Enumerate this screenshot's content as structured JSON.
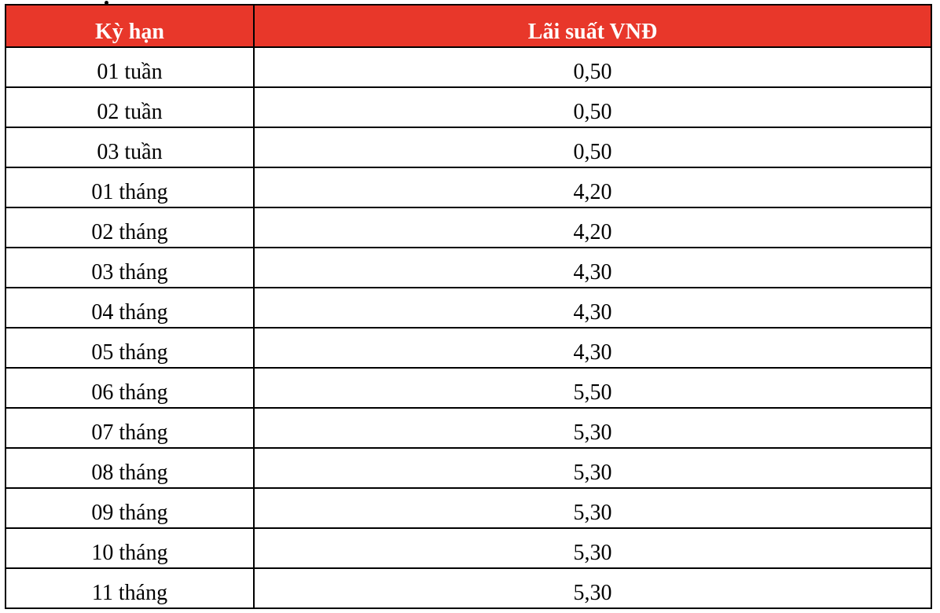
{
  "table": {
    "header_color": "#e8372a",
    "headers": [
      "Kỳ hạn",
      "Lãi suất VNĐ"
    ],
    "rows": [
      [
        "01 tuần",
        "0,50"
      ],
      [
        "02 tuần",
        "0,50"
      ],
      [
        "03 tuần",
        "0,50"
      ],
      [
        "01 tháng",
        "4,20"
      ],
      [
        "02 tháng",
        "4,20"
      ],
      [
        "03 tháng",
        "4,30"
      ],
      [
        "04 tháng",
        "4,30"
      ],
      [
        "05 tháng",
        "4,30"
      ],
      [
        "06 tháng",
        "5,50"
      ],
      [
        "07 tháng",
        "5,30"
      ],
      [
        "08 tháng",
        "5,30"
      ],
      [
        "09 tháng",
        "5,30"
      ],
      [
        "10 tháng",
        "5,30"
      ],
      [
        "11 tháng",
        "5,30"
      ]
    ]
  }
}
